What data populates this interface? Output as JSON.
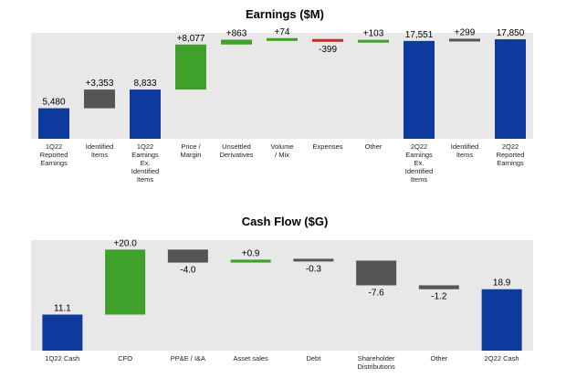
{
  "chart_data": [
    {
      "type": "waterfall",
      "title": "Earnings ($M)",
      "categories": [
        [
          "1Q22",
          "Reported",
          "Earnings"
        ],
        [
          "Identified",
          "Items"
        ],
        [
          "1Q22",
          "Earnings",
          "Ex.",
          "Identified",
          "Items"
        ],
        [
          "Price /",
          "Margin"
        ],
        [
          "Unsettled",
          "Derivatives"
        ],
        [
          "Volume",
          "/ Mix"
        ],
        [
          "Expenses"
        ],
        [
          "Other"
        ],
        [
          "2Q22",
          "Earnings",
          "Ex.",
          "Identified",
          "Items"
        ],
        [
          "Identified",
          "Items"
        ],
        [
          "2Q22",
          "Reported",
          "Earnings"
        ]
      ],
      "values": [
        5480,
        3353,
        8833,
        8077,
        863,
        74,
        -399,
        103,
        17551,
        299,
        17850
      ],
      "labels": [
        "5,480",
        "+3,353",
        "8,833",
        "+8,077",
        "+863",
        "+74",
        "-399",
        "+103",
        "17,551",
        "+299",
        "17,850"
      ],
      "kinds": [
        "total",
        "delta",
        "total",
        "delta",
        "delta",
        "delta",
        "delta",
        "delta",
        "total",
        "delta",
        "total"
      ],
      "colors": [
        "#0d3a9c",
        "#555555",
        "#0d3a9c",
        "#3fa02a",
        "#3fa02a",
        "#3fa02a",
        "#e02020",
        "#3fa02a",
        "#0d3a9c",
        "#555555",
        "#0d3a9c"
      ],
      "ylim": [
        0,
        19000
      ],
      "background": "#e8e8e8"
    },
    {
      "type": "waterfall",
      "title": "Cash Flow ($G)",
      "categories": [
        [
          "1Q22 Cash"
        ],
        [
          "CFO"
        ],
        [
          "PP&E / I&A"
        ],
        [
          "Asset sales"
        ],
        [
          "Debt"
        ],
        [
          "Shareholder",
          "Distributions"
        ],
        [
          "Other"
        ],
        [
          "2Q22 Cash"
        ]
      ],
      "values": [
        11.1,
        20.0,
        -4.0,
        0.9,
        -0.3,
        -7.6,
        -1.2,
        18.9
      ],
      "labels": [
        "11.1",
        "+20.0",
        "-4.0",
        "+0.9",
        "-0.3",
        "-7.6",
        "-1.2",
        "18.9"
      ],
      "kinds": [
        "total",
        "delta",
        "delta",
        "delta",
        "delta",
        "delta",
        "delta",
        "total"
      ],
      "colors": [
        "#0d3a9c",
        "#3fa02a",
        "#555555",
        "#3fa02a",
        "#555555",
        "#555555",
        "#555555",
        "#0d3a9c"
      ],
      "ylim": [
        0,
        34
      ],
      "background": "#e8e8e8"
    }
  ]
}
